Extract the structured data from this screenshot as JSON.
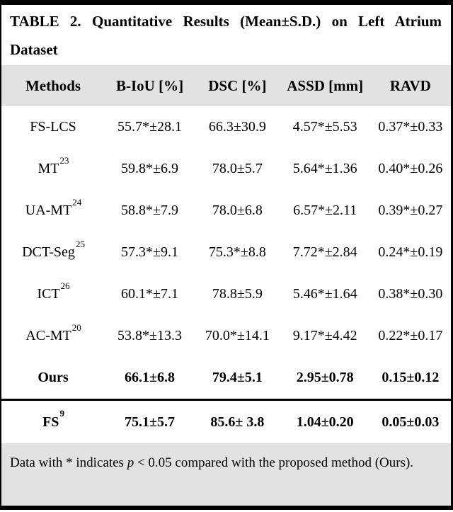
{
  "title": "TABLE 2. Quantitative Results (Mean±S.D.) on Left Atrium Dataset",
  "table": {
    "columns": [
      "Methods",
      "B-IoU [%]",
      "DSC [%]",
      "ASSD [mm]",
      "RAVD"
    ],
    "rows": [
      {
        "method": "FS-LCS",
        "sup": "",
        "biou": "55.7*±28.1",
        "dsc": "66.3±30.9",
        "assd": "4.57*±5.53",
        "ravd": "0.37*±0.33"
      },
      {
        "method": "MT",
        "sup": "23",
        "biou": "59.8*±6.9",
        "dsc": "78.0±5.7",
        "assd": "5.64*±1.36",
        "ravd": "0.40*±0.26"
      },
      {
        "method": "UA-MT",
        "sup": "24",
        "biou": "58.8*±7.9",
        "dsc": "78.0±6.8",
        "assd": "6.57*±2.11",
        "ravd": "0.39*±0.27"
      },
      {
        "method": "DCT-Seg",
        "sup": "25",
        "biou": "57.3*±9.1",
        "dsc": "75.3*±8.8",
        "assd": "7.72*±2.84",
        "ravd": "0.24*±0.19"
      },
      {
        "method": "ICT",
        "sup": "26",
        "biou": "60.1*±7.1",
        "dsc": "78.8±5.9",
        "assd": "5.46*±1.64",
        "ravd": "0.38*±0.30"
      },
      {
        "method": "AC-MT",
        "sup": "20",
        "biou": "53.8*±13.3",
        "dsc": "70.0*±14.1",
        "assd": "9.17*±4.42",
        "ravd": "0.22*±0.17"
      },
      {
        "method": "Ours",
        "sup": "",
        "biou": "66.1±6.8",
        "dsc": "79.4±5.1",
        "assd": "2.95±0.78",
        "ravd": "0.15±0.12"
      },
      {
        "method": "FS",
        "sup": "9",
        "biou": "75.1±5.7",
        "dsc": "85.6± 3.8",
        "assd": "1.04±0.20",
        "ravd": "0.05±0.03"
      }
    ]
  },
  "footnote": {
    "pre": "Data with * indicates ",
    "p_symbol": "p",
    "post": " < 0.05 compared with the proposed method (Ours)."
  },
  "colors": {
    "band_gray": "#e2e2e2",
    "border_black": "#000000",
    "background": "#ffffff"
  }
}
